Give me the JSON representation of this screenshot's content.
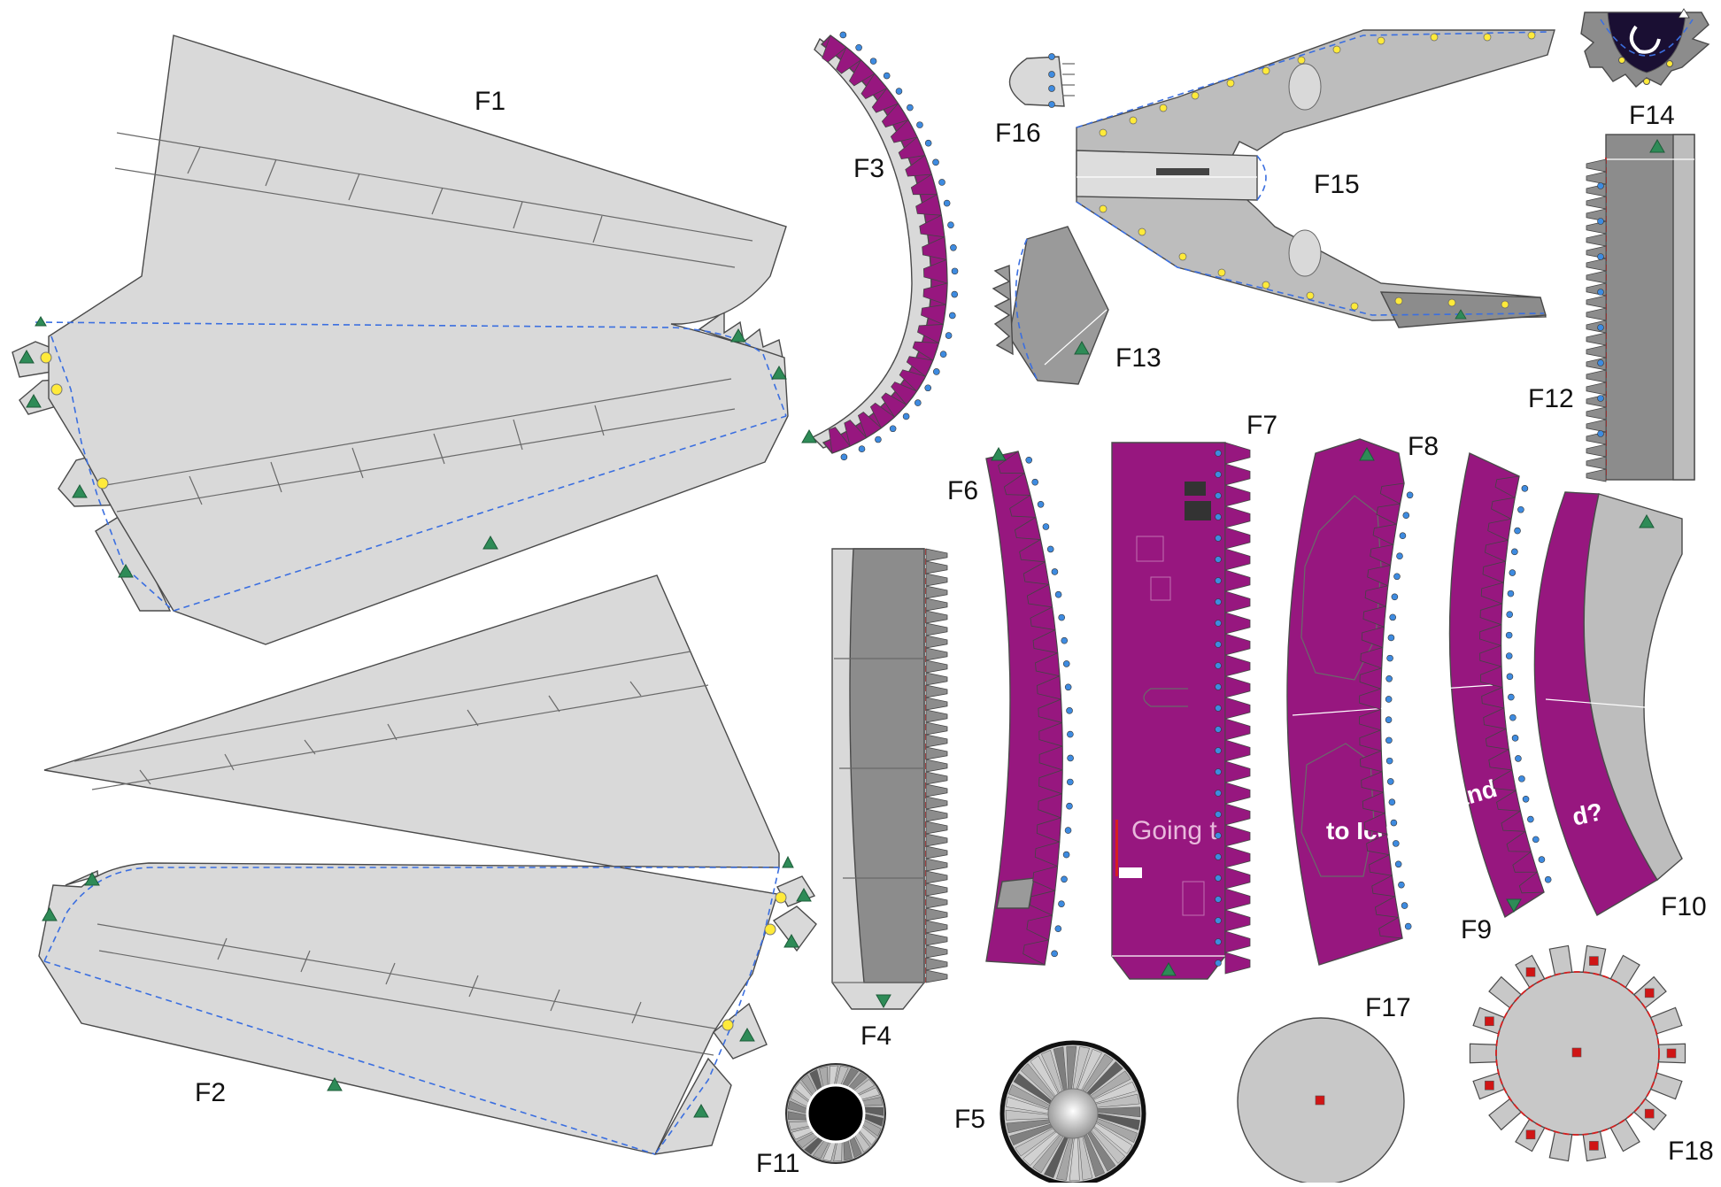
{
  "sheet": {
    "labels": {
      "f1": "F1",
      "f2": "F2",
      "f3": "F3",
      "f4": "F4",
      "f5": "F5",
      "f6": "F6",
      "f7": "F7",
      "f8": "F8",
      "f9": "F9",
      "f10": "F10",
      "f11": "F11",
      "f12": "F12",
      "f13": "F13",
      "f14": "F14",
      "f15": "F15",
      "f16": "F16",
      "f17": "F17",
      "f18": "F18"
    },
    "livery": {
      "f7_text": "Going t",
      "f8_text": "to Icel",
      "f9_text": "and",
      "f10_text": "d?"
    },
    "colors": {
      "purple": "#97177f",
      "light_gray": "#d9d9d9",
      "mid_gray": "#bdbdbd",
      "dark_gray": "#8c8c8c",
      "fold_line": "#3b6fe0",
      "cut_line": "#d51f1f",
      "triangle_marker": "#2e8b57",
      "dot_marker": "#ffea3a",
      "hole_marker": "#3e8be0",
      "square_marker": "#d01515"
    }
  }
}
